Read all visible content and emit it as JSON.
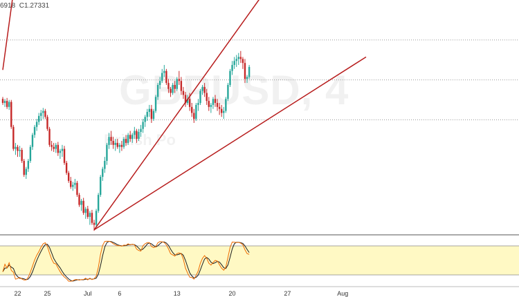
{
  "header": {
    "ohlc_text": "6918  C1.27331"
  },
  "watermark": {
    "symbol": "GBPUSD, 4",
    "subtitle": "British Po"
  },
  "chart_data": [
    {
      "type": "candlestick",
      "title": "",
      "colors": {
        "up": "#26a69a",
        "down": "#c62828"
      },
      "ylim": [
        1.266,
        1.2895
      ],
      "horizontal_levels": [
        1.2855,
        1.2815,
        1.2775
      ],
      "trendlines": [
        {
          "color": "#b71c1c",
          "from": {
            "i": 0,
            "y": 1.2825
          },
          "to": {
            "i": 7,
            "y": 1.2934
          }
        },
        {
          "color": "#b71c1c",
          "from": {
            "i": 43,
            "y": 1.2665
          },
          "to": {
            "i": 134,
            "y": 1.2935
          }
        },
        {
          "color": "#b71c1c",
          "from": {
            "i": 43,
            "y": 1.2665
          },
          "to": {
            "i": 171,
            "y": 1.2838
          }
        }
      ],
      "candles": [
        [
          1.2796,
          1.2798,
          1.279,
          1.2792
        ],
        [
          1.2792,
          1.2796,
          1.2788,
          1.2794
        ],
        [
          1.2794,
          1.2797,
          1.2786,
          1.2788
        ],
        [
          1.2788,
          1.2795,
          1.2785,
          1.2793
        ],
        [
          1.2793,
          1.2795,
          1.2766,
          1.2768
        ],
        [
          1.2768,
          1.277,
          1.2744,
          1.2746
        ],
        [
          1.2746,
          1.2752,
          1.274,
          1.2748
        ],
        [
          1.2748,
          1.275,
          1.2738,
          1.2744
        ],
        [
          1.2744,
          1.2749,
          1.2738,
          1.2745
        ],
        [
          1.2745,
          1.2747,
          1.2732,
          1.2734
        ],
        [
          1.2734,
          1.2736,
          1.2718,
          1.272
        ],
        [
          1.272,
          1.2728,
          1.2716,
          1.2726
        ],
        [
          1.2726,
          1.2736,
          1.2723,
          1.2734
        ],
        [
          1.2734,
          1.275,
          1.2732,
          1.2748
        ],
        [
          1.2748,
          1.2762,
          1.2745,
          1.276
        ],
        [
          1.276,
          1.277,
          1.2757,
          1.2768
        ],
        [
          1.2768,
          1.2776,
          1.2764,
          1.2773
        ],
        [
          1.2773,
          1.2782,
          1.277,
          1.2779
        ],
        [
          1.2779,
          1.2785,
          1.2774,
          1.2782
        ],
        [
          1.2782,
          1.2787,
          1.2776,
          1.2784
        ],
        [
          1.2784,
          1.2786,
          1.2776,
          1.2778
        ],
        [
          1.2778,
          1.278,
          1.2764,
          1.2766
        ],
        [
          1.2766,
          1.2768,
          1.2748,
          1.275
        ],
        [
          1.275,
          1.2754,
          1.2744,
          1.2748
        ],
        [
          1.2748,
          1.2752,
          1.2743,
          1.2746
        ],
        [
          1.2746,
          1.2752,
          1.2742,
          1.275
        ],
        [
          1.275,
          1.2753,
          1.2739,
          1.2742
        ],
        [
          1.2742,
          1.2746,
          1.2736,
          1.2744
        ],
        [
          1.2744,
          1.275,
          1.2738,
          1.2746
        ],
        [
          1.2746,
          1.2749,
          1.273,
          1.2732
        ],
        [
          1.2732,
          1.2734,
          1.272,
          1.2722
        ],
        [
          1.2722,
          1.2724,
          1.2712,
          1.2714
        ],
        [
          1.2714,
          1.2718,
          1.2706,
          1.2708
        ],
        [
          1.2708,
          1.2713,
          1.2704,
          1.271
        ],
        [
          1.271,
          1.2716,
          1.2706,
          1.2712
        ],
        [
          1.2712,
          1.2714,
          1.2698,
          1.27
        ],
        [
          1.27,
          1.2702,
          1.2688,
          1.269
        ],
        [
          1.269,
          1.2696,
          1.2684,
          1.2694
        ],
        [
          1.2694,
          1.2697,
          1.268,
          1.2682
        ],
        [
          1.2682,
          1.2688,
          1.2676,
          1.2686
        ],
        [
          1.2686,
          1.2689,
          1.2676,
          1.2678
        ],
        [
          1.2678,
          1.2684,
          1.267,
          1.2682
        ],
        [
          1.2682,
          1.2685,
          1.267,
          1.2672
        ],
        [
          1.2672,
          1.2675,
          1.2664,
          1.267
        ],
        [
          1.267,
          1.2686,
          1.2668,
          1.2684
        ],
        [
          1.2684,
          1.2702,
          1.2682,
          1.27
        ],
        [
          1.27,
          1.272,
          1.2698,
          1.2718
        ],
        [
          1.2718,
          1.2728,
          1.2714,
          1.2726
        ],
        [
          1.2726,
          1.2738,
          1.2722,
          1.2734
        ],
        [
          1.2734,
          1.2752,
          1.273,
          1.275
        ],
        [
          1.275,
          1.2762,
          1.2746,
          1.2758
        ],
        [
          1.2758,
          1.2764,
          1.275,
          1.2754
        ],
        [
          1.2754,
          1.2758,
          1.2746,
          1.275
        ],
        [
          1.275,
          1.2756,
          1.2744,
          1.2752
        ],
        [
          1.2752,
          1.2756,
          1.2746,
          1.2748
        ],
        [
          1.2748,
          1.2752,
          1.2742,
          1.275
        ],
        [
          1.275,
          1.2754,
          1.2744,
          1.2748
        ],
        [
          1.2748,
          1.2758,
          1.2746,
          1.2756
        ],
        [
          1.2756,
          1.276,
          1.2749,
          1.2752
        ],
        [
          1.2752,
          1.2762,
          1.275,
          1.276
        ],
        [
          1.276,
          1.2764,
          1.2753,
          1.2756
        ],
        [
          1.2756,
          1.2762,
          1.2752,
          1.276
        ],
        [
          1.276,
          1.2768,
          1.2756,
          1.2764
        ],
        [
          1.2764,
          1.2766,
          1.2752,
          1.2756
        ],
        [
          1.2756,
          1.2766,
          1.2754,
          1.2763
        ],
        [
          1.2763,
          1.277,
          1.2758,
          1.2766
        ],
        [
          1.2766,
          1.2776,
          1.2762,
          1.2773
        ],
        [
          1.2773,
          1.278,
          1.2768,
          1.2778
        ],
        [
          1.2778,
          1.2786,
          1.2774,
          1.2783
        ],
        [
          1.2783,
          1.279,
          1.2778,
          1.2786
        ],
        [
          1.2786,
          1.279,
          1.2772,
          1.2776
        ],
        [
          1.2776,
          1.2786,
          1.2774,
          1.2784
        ],
        [
          1.2784,
          1.28,
          1.2782,
          1.2798
        ],
        [
          1.2798,
          1.2812,
          1.2795,
          1.281
        ],
        [
          1.281,
          1.2818,
          1.2806,
          1.2814
        ],
        [
          1.2814,
          1.2826,
          1.2812,
          1.2822
        ],
        [
          1.2822,
          1.283,
          1.2818,
          1.2824
        ],
        [
          1.2824,
          1.2826,
          1.281,
          1.2812
        ],
        [
          1.2812,
          1.2816,
          1.2802,
          1.2806
        ],
        [
          1.2806,
          1.2808,
          1.2798,
          1.2802
        ],
        [
          1.2802,
          1.2812,
          1.28,
          1.281
        ],
        [
          1.281,
          1.2814,
          1.2802,
          1.2806
        ],
        [
          1.2806,
          1.2818,
          1.2804,
          1.2816
        ],
        [
          1.2816,
          1.2824,
          1.281,
          1.2814
        ],
        [
          1.2814,
          1.2818,
          1.28,
          1.2804
        ],
        [
          1.2804,
          1.2808,
          1.2796,
          1.28
        ],
        [
          1.28,
          1.2803,
          1.2788,
          1.2792
        ],
        [
          1.2792,
          1.28,
          1.279,
          1.2796
        ],
        [
          1.2796,
          1.2802,
          1.2784,
          1.2788
        ],
        [
          1.2788,
          1.2792,
          1.2778,
          1.2782
        ],
        [
          1.2782,
          1.2786,
          1.2772,
          1.2776
        ],
        [
          1.2776,
          1.2792,
          1.2774,
          1.279
        ],
        [
          1.279,
          1.2796,
          1.2784,
          1.2792
        ],
        [
          1.2792,
          1.2806,
          1.279,
          1.2804
        ],
        [
          1.2804,
          1.281,
          1.28,
          1.2808
        ],
        [
          1.2808,
          1.2812,
          1.2798,
          1.2802
        ],
        [
          1.2802,
          1.2806,
          1.279,
          1.2794
        ],
        [
          1.2794,
          1.2798,
          1.2784,
          1.2788
        ],
        [
          1.2788,
          1.2792,
          1.2782,
          1.279
        ],
        [
          1.279,
          1.2798,
          1.2786,
          1.2796
        ],
        [
          1.2796,
          1.28,
          1.2788,
          1.2792
        ],
        [
          1.2792,
          1.2796,
          1.2784,
          1.2788
        ],
        [
          1.2788,
          1.2792,
          1.278,
          1.2786
        ],
        [
          1.2786,
          1.279,
          1.2778,
          1.2782
        ],
        [
          1.2782,
          1.2788,
          1.2776,
          1.2784
        ],
        [
          1.2784,
          1.2798,
          1.2782,
          1.2796
        ],
        [
          1.2796,
          1.2812,
          1.2794,
          1.281
        ],
        [
          1.281,
          1.2826,
          1.2808,
          1.2824
        ],
        [
          1.2824,
          1.2834,
          1.282,
          1.283
        ],
        [
          1.283,
          1.2838,
          1.2826,
          1.2834
        ],
        [
          1.2834,
          1.284,
          1.2828,
          1.2836
        ],
        [
          1.2836,
          1.2842,
          1.283,
          1.2838
        ],
        [
          1.2838,
          1.2844,
          1.2832,
          1.2836
        ],
        [
          1.2836,
          1.2838,
          1.2826,
          1.2832
        ],
        [
          1.2832,
          1.2836,
          1.2812,
          1.2816
        ],
        [
          1.2816,
          1.282,
          1.2812,
          1.2818
        ],
        [
          1.2818,
          1.283,
          1.2816,
          1.2828
        ]
      ],
      "stochastic": {
        "band": [
          20,
          80
        ],
        "k_color": "#ef6c00",
        "d_color": "#1a1a1a"
      },
      "x_tick_labels": [
        {
          "i": 7,
          "label": "22"
        },
        {
          "i": 21,
          "label": "25"
        },
        {
          "i": 40,
          "label": "Jul"
        },
        {
          "i": 55,
          "label": "6"
        },
        {
          "i": 82,
          "label": "13"
        },
        {
          "i": 108,
          "label": "20"
        },
        {
          "i": 134,
          "label": "27"
        },
        {
          "i": 160,
          "label": "Aug"
        }
      ]
    }
  ]
}
